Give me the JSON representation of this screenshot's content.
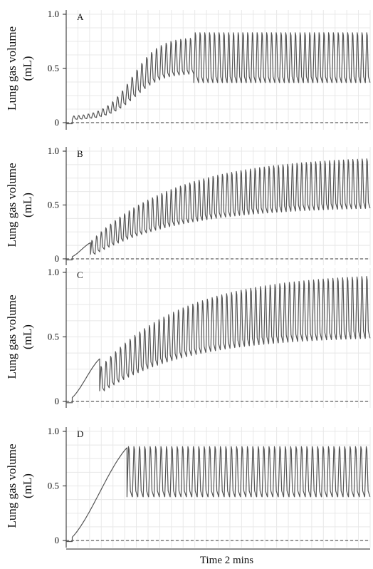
{
  "chart_data": {
    "type": "line",
    "xlabel": "Time 2 mins",
    "ylabel": [
      "Lung gas volume",
      "(mL)"
    ],
    "ylim": [
      0,
      1.0
    ],
    "yticks": [
      "0",
      "0.5",
      "1.0"
    ],
    "grid": true,
    "baseline_dashed": true,
    "line_color": "#555555",
    "grid_color": "#e8e8e8",
    "panels": [
      {
        "label": "A",
        "n_breaths": 62,
        "phases": [
          {
            "start": 0.0,
            "end": 0.02,
            "shape": "flat",
            "value": -0.01
          },
          {
            "start": 0.02,
            "end": 0.42,
            "shape": "sigmoid_oscillation",
            "trough_from": 0.03,
            "trough_to": 0.45,
            "peak_from": 0.06,
            "peak_to": 0.78
          },
          {
            "start": 0.42,
            "end": 1.0,
            "shape": "oscillation",
            "trough": 0.37,
            "peak": 0.83
          }
        ]
      },
      {
        "label": "B",
        "n_breaths": 60,
        "phases": [
          {
            "start": 0.0,
            "end": 0.02,
            "shape": "flat",
            "value": -0.01
          },
          {
            "start": 0.02,
            "end": 0.08,
            "shape": "ramp",
            "from": 0.02,
            "to": 0.15
          },
          {
            "start": 0.08,
            "end": 1.0,
            "shape": "exp_oscillation",
            "trough_from": 0.03,
            "trough_to": 0.47,
            "peak_from": 0.15,
            "peak_to": 0.93
          }
        ]
      },
      {
        "label": "C",
        "n_breaths": 56,
        "phases": [
          {
            "start": 0.0,
            "end": 0.02,
            "shape": "flat",
            "value": -0.01
          },
          {
            "start": 0.02,
            "end": 0.11,
            "shape": "ramp",
            "from": 0.03,
            "to": 0.33
          },
          {
            "start": 0.11,
            "end": 1.0,
            "shape": "exp_oscillation",
            "trough_from": 0.07,
            "trough_to": 0.49,
            "peak_from": 0.25,
            "peak_to": 0.97
          }
        ]
      },
      {
        "label": "D",
        "n_breaths": 45,
        "phases": [
          {
            "start": 0.0,
            "end": 0.02,
            "shape": "flat",
            "value": -0.01
          },
          {
            "start": 0.02,
            "end": 0.2,
            "shape": "ramp",
            "from": 0.03,
            "to": 0.85
          },
          {
            "start": 0.2,
            "end": 1.0,
            "shape": "oscillation",
            "trough": 0.4,
            "peak": 0.86
          }
        ]
      }
    ]
  }
}
